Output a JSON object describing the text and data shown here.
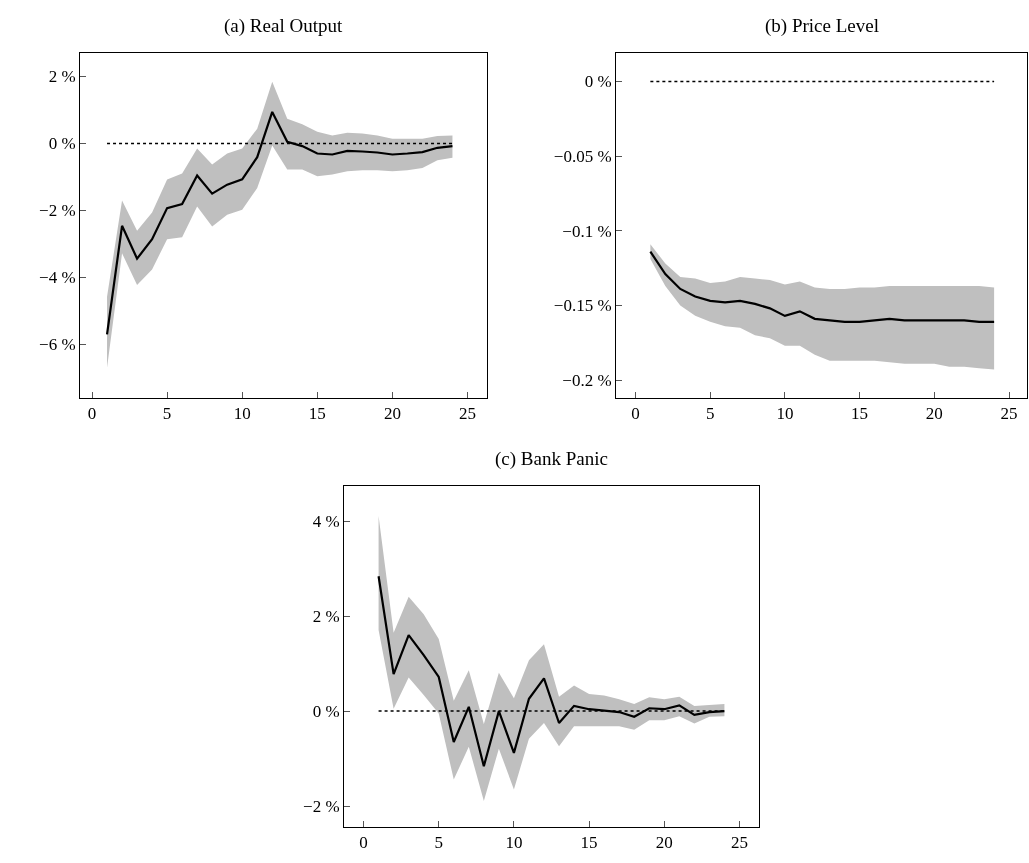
{
  "chart_data": [
    {
      "type": "line",
      "title": "(a) Real Output",
      "x": [
        1,
        2,
        3,
        4,
        5,
        6,
        7,
        8,
        9,
        10,
        11,
        12,
        13,
        14,
        15,
        16,
        17,
        18,
        19,
        20,
        21,
        22,
        23,
        24
      ],
      "series": [
        {
          "color": "#000000",
          "values": [
            -5.7,
            -2.46,
            -3.44,
            -2.86,
            -1.93,
            -1.81,
            -0.96,
            -1.5,
            -1.23,
            -1.07,
            -0.41,
            0.94,
            0.05,
            -0.08,
            -0.3,
            -0.33,
            -0.22,
            -0.24,
            -0.27,
            -0.33,
            -0.3,
            -0.26,
            -0.13,
            -0.08
          ],
          "lower": [
            -6.7,
            -3.28,
            -4.23,
            -3.76,
            -2.86,
            -2.8,
            -1.88,
            -2.48,
            -2.13,
            -1.98,
            -1.33,
            -0.06,
            -0.78,
            -0.78,
            -0.98,
            -0.93,
            -0.83,
            -0.8,
            -0.8,
            -0.83,
            -0.8,
            -0.73,
            -0.5,
            -0.43
          ],
          "upper": [
            -4.58,
            -1.7,
            -2.61,
            -2.06,
            -1.08,
            -0.9,
            -0.15,
            -0.63,
            -0.3,
            -0.15,
            0.44,
            1.84,
            0.74,
            0.57,
            0.35,
            0.24,
            0.32,
            0.3,
            0.24,
            0.14,
            0.14,
            0.14,
            0.22,
            0.24
          ]
        }
      ],
      "ref_lines": [
        {
          "axis": "y",
          "value": 0,
          "color": "#000000",
          "line_style": "dotted"
        }
      ],
      "xlim": [
        -0.8,
        26.3
      ],
      "xticks": [
        0,
        5,
        10,
        15,
        20,
        25
      ],
      "ylim": [
        -7.6,
        2.7
      ],
      "yticks": [
        {
          "value": -6,
          "label": "−6 %"
        },
        {
          "value": -4,
          "label": "−4 %"
        },
        {
          "value": -2,
          "label": "−2 %"
        },
        {
          "value": 0,
          "label": "0 %"
        },
        {
          "value": 2,
          "label": "2 %"
        }
      ],
      "line_style": "solid",
      "marker": "none"
    },
    {
      "type": "line",
      "title": "(b) Price Level",
      "x": [
        1,
        2,
        3,
        4,
        5,
        6,
        7,
        8,
        9,
        10,
        11,
        12,
        13,
        14,
        15,
        16,
        17,
        18,
        19,
        20,
        21,
        22,
        23,
        24
      ],
      "series": [
        {
          "color": "#000000",
          "values": [
            -0.114,
            -0.129,
            -0.139,
            -0.144,
            -0.147,
            -0.148,
            -0.147,
            -0.149,
            -0.152,
            -0.157,
            -0.154,
            -0.159,
            -0.16,
            -0.161,
            -0.161,
            -0.16,
            -0.159,
            -0.16,
            -0.16,
            -0.16,
            -0.16,
            -0.16,
            -0.161,
            -0.161
          ],
          "lower": [
            -0.119,
            -0.137,
            -0.15,
            -0.157,
            -0.161,
            -0.164,
            -0.165,
            -0.17,
            -0.172,
            -0.177,
            -0.177,
            -0.183,
            -0.187,
            -0.187,
            -0.187,
            -0.187,
            -0.188,
            -0.189,
            -0.189,
            -0.189,
            -0.191,
            -0.191,
            -0.192,
            -0.193
          ],
          "upper": [
            -0.109,
            -0.122,
            -0.131,
            -0.132,
            -0.135,
            -0.134,
            -0.131,
            -0.132,
            -0.133,
            -0.136,
            -0.134,
            -0.138,
            -0.139,
            -0.139,
            -0.138,
            -0.138,
            -0.137,
            -0.137,
            -0.137,
            -0.137,
            -0.137,
            -0.137,
            -0.137,
            -0.138
          ]
        }
      ],
      "ref_lines": [
        {
          "axis": "y",
          "value": 0,
          "color": "#000000",
          "line_style": "dotted"
        }
      ],
      "xlim": [
        -1.3,
        26.2
      ],
      "xticks": [
        0,
        5,
        10,
        15,
        20,
        25
      ],
      "ylim": [
        -0.212,
        0.019
      ],
      "yticks": [
        {
          "value": -0.2,
          "label": "−0.2 %"
        },
        {
          "value": -0.15,
          "label": "−0.15 %"
        },
        {
          "value": -0.1,
          "label": "−0.1 %"
        },
        {
          "value": -0.05,
          "label": "−0.05 %"
        },
        {
          "value": 0,
          "label": "0 %"
        }
      ],
      "line_style": "solid",
      "marker": "none"
    },
    {
      "type": "line",
      "title": "(c) Bank Panic",
      "x": [
        1,
        2,
        3,
        4,
        5,
        6,
        7,
        8,
        9,
        10,
        11,
        12,
        13,
        14,
        15,
        16,
        17,
        18,
        19,
        20,
        21,
        22,
        23,
        24
      ],
      "series": [
        {
          "color": "#000000",
          "values": [
            2.84,
            0.78,
            1.6,
            1.18,
            0.72,
            -0.65,
            0.09,
            -1.16,
            0,
            -0.88,
            0.26,
            0.69,
            -0.25,
            0.11,
            0.04,
            0.01,
            -0.02,
            -0.12,
            0.06,
            0.04,
            0.12,
            -0.08,
            -0.02,
            0
          ],
          "lower": [
            1.71,
            0.05,
            0.71,
            0.34,
            -0.05,
            -1.44,
            -0.75,
            -1.89,
            -0.79,
            -1.65,
            -0.58,
            -0.25,
            -0.74,
            -0.32,
            -0.32,
            -0.32,
            -0.32,
            -0.39,
            -0.19,
            -0.19,
            -0.11,
            -0.26,
            -0.12,
            -0.11
          ],
          "upper": [
            4.11,
            1.65,
            2.41,
            2.04,
            1.52,
            0.22,
            0.86,
            -0.27,
            0.81,
            0.27,
            1.07,
            1.41,
            0.3,
            0.54,
            0.36,
            0.33,
            0.25,
            0.15,
            0.29,
            0.25,
            0.3,
            0.11,
            0.13,
            0.15
          ]
        }
      ],
      "ref_lines": [
        {
          "axis": "y",
          "value": 0,
          "color": "#000000",
          "line_style": "dotted"
        }
      ],
      "xlim": [
        -1.3,
        26.3
      ],
      "xticks": [
        0,
        5,
        10,
        15,
        20,
        25
      ],
      "ylim": [
        -2.44,
        4.74
      ],
      "yticks": [
        {
          "value": -2,
          "label": "−2 %"
        },
        {
          "value": 0,
          "label": "0 %"
        },
        {
          "value": 2,
          "label": "2 %"
        },
        {
          "value": 4,
          "label": "4 %"
        }
      ],
      "line_style": "solid",
      "marker": "none"
    }
  ]
}
